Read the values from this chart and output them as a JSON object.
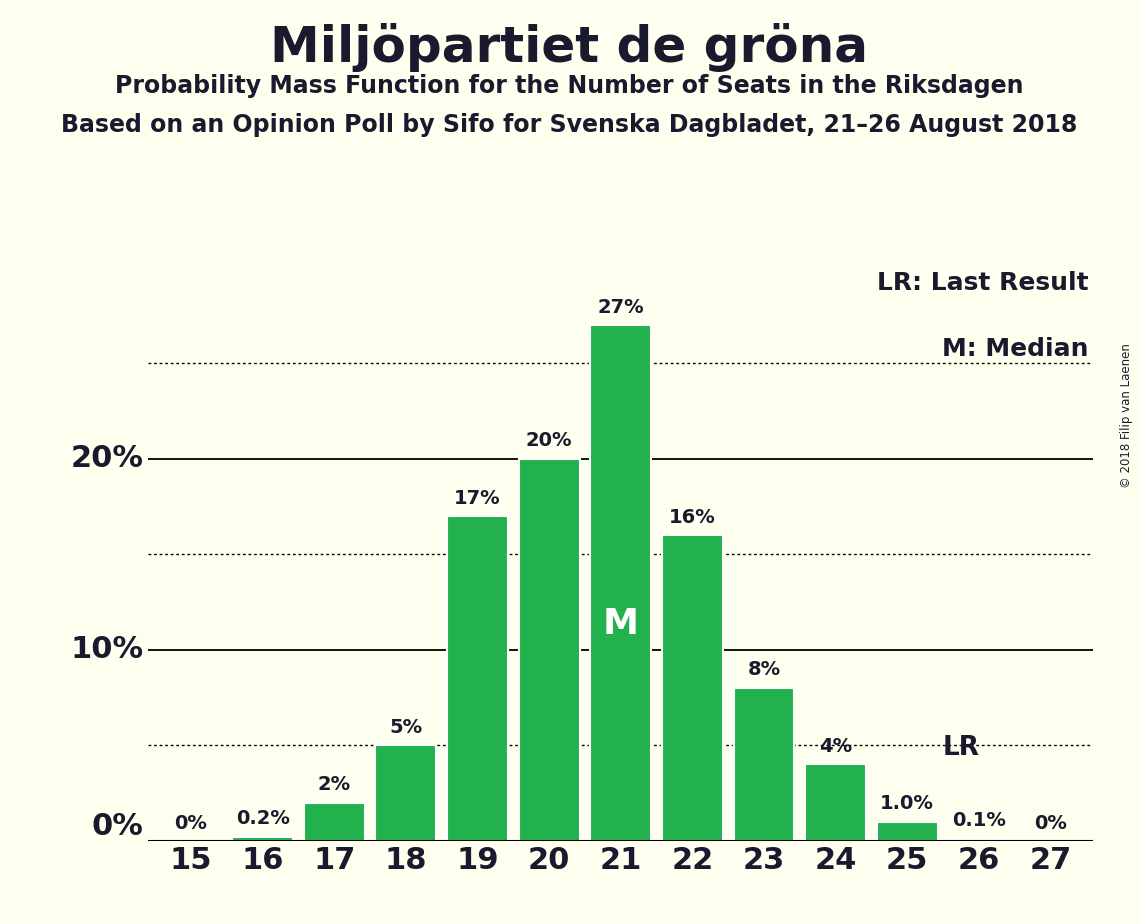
{
  "title": "Miljöpartiet de gröna",
  "subtitle1": "Probability Mass Function for the Number of Seats in the Riksdagen",
  "subtitle2": "Based on an Opinion Poll by Sifo for Svenska Dagbladet, 21–26 August 2018",
  "copyright": "© 2018 Filip van Laenen",
  "seats": [
    15,
    16,
    17,
    18,
    19,
    20,
    21,
    22,
    23,
    24,
    25,
    26,
    27
  ],
  "probabilities": [
    0.0,
    0.2,
    2.0,
    5.0,
    17.0,
    20.0,
    27.0,
    16.0,
    8.0,
    4.0,
    1.0,
    0.1,
    0.0
  ],
  "bar_color": "#22b14c",
  "bar_edge_color": "#ffffff",
  "background_color": "#fffff0",
  "text_color": "#1a1a2e",
  "median_seat": 21,
  "lr_seat": 25,
  "lr_value": 4.0,
  "dotted_line_values": [
    5.0,
    15.0,
    25.0
  ],
  "solid_line_values": [
    10.0,
    20.0
  ],
  "ylim": [
    0,
    30
  ],
  "ytick_labels_positions": [
    0,
    10,
    20
  ],
  "ytick_labels": [
    "0%",
    "10%",
    "20%"
  ],
  "legend_lr": "LR: Last Result",
  "legend_m": "M: Median",
  "bar_labels": [
    "0%",
    "0.2%",
    "2%",
    "5%",
    "17%",
    "20%",
    "27%",
    "16%",
    "8%",
    "4%",
    "1.0%",
    "0.1%",
    "0%"
  ],
  "bar_label_fontsize": 14,
  "axis_label_fontsize": 22,
  "title_fontsize": 36,
  "subtitle_fontsize": 17,
  "legend_fontsize": 18
}
